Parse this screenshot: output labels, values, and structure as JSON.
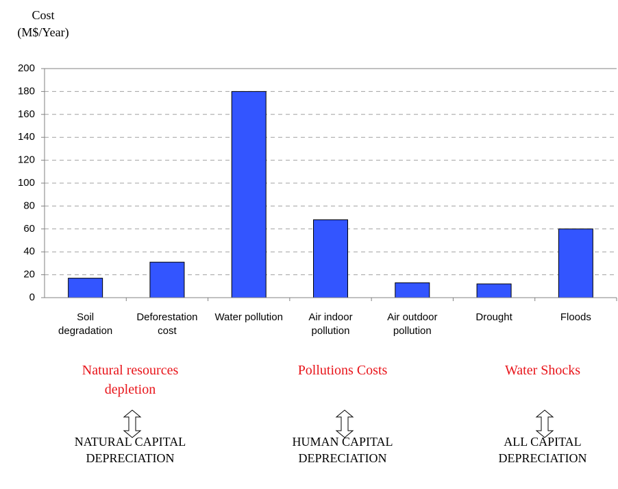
{
  "chart_data": {
    "type": "bar",
    "y_label": "Cost (M$/Year)",
    "categories": [
      "Soil degradation",
      "Deforestation cost",
      "Water pollution",
      "Air indoor pollution",
      "Air outdoor pollution",
      "Drought",
      "Floods"
    ],
    "values": [
      17,
      31,
      180,
      68,
      13,
      12,
      60
    ],
    "color": "#3355ff",
    "ylim": [
      0,
      200
    ],
    "yticks": [
      0,
      20,
      40,
      60,
      80,
      100,
      120,
      140,
      160,
      180,
      200
    ],
    "grid": true,
    "annotations": [
      {
        "group": "Natural resources depletion",
        "depreciation": "NATURAL CAPITAL DEPRECIATION"
      },
      {
        "group": "Pollutions Costs",
        "depreciation": "HUMAN CAPITAL DEPRECIATION"
      },
      {
        "group": "Water Shocks",
        "depreciation": "ALL CAPITAL DEPRECIATION"
      }
    ]
  }
}
